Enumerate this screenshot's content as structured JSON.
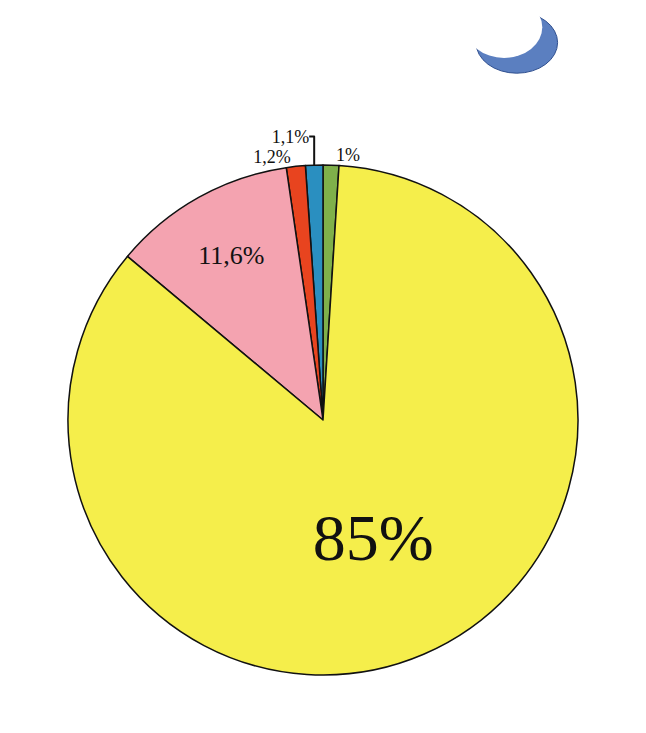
{
  "chart_data": {
    "type": "pie",
    "values": [
      1,
      1.1,
      1.2,
      11.6,
      85
    ],
    "value_labels": [
      "1%",
      "1,1%",
      "1,2%",
      "11,6%",
      "85%"
    ],
    "colors": [
      "#7fb04a",
      "#2a8fc0",
      "#e8441f",
      "#f4a3b0",
      "#f5ee4b"
    ],
    "data_labels": true
  }
}
